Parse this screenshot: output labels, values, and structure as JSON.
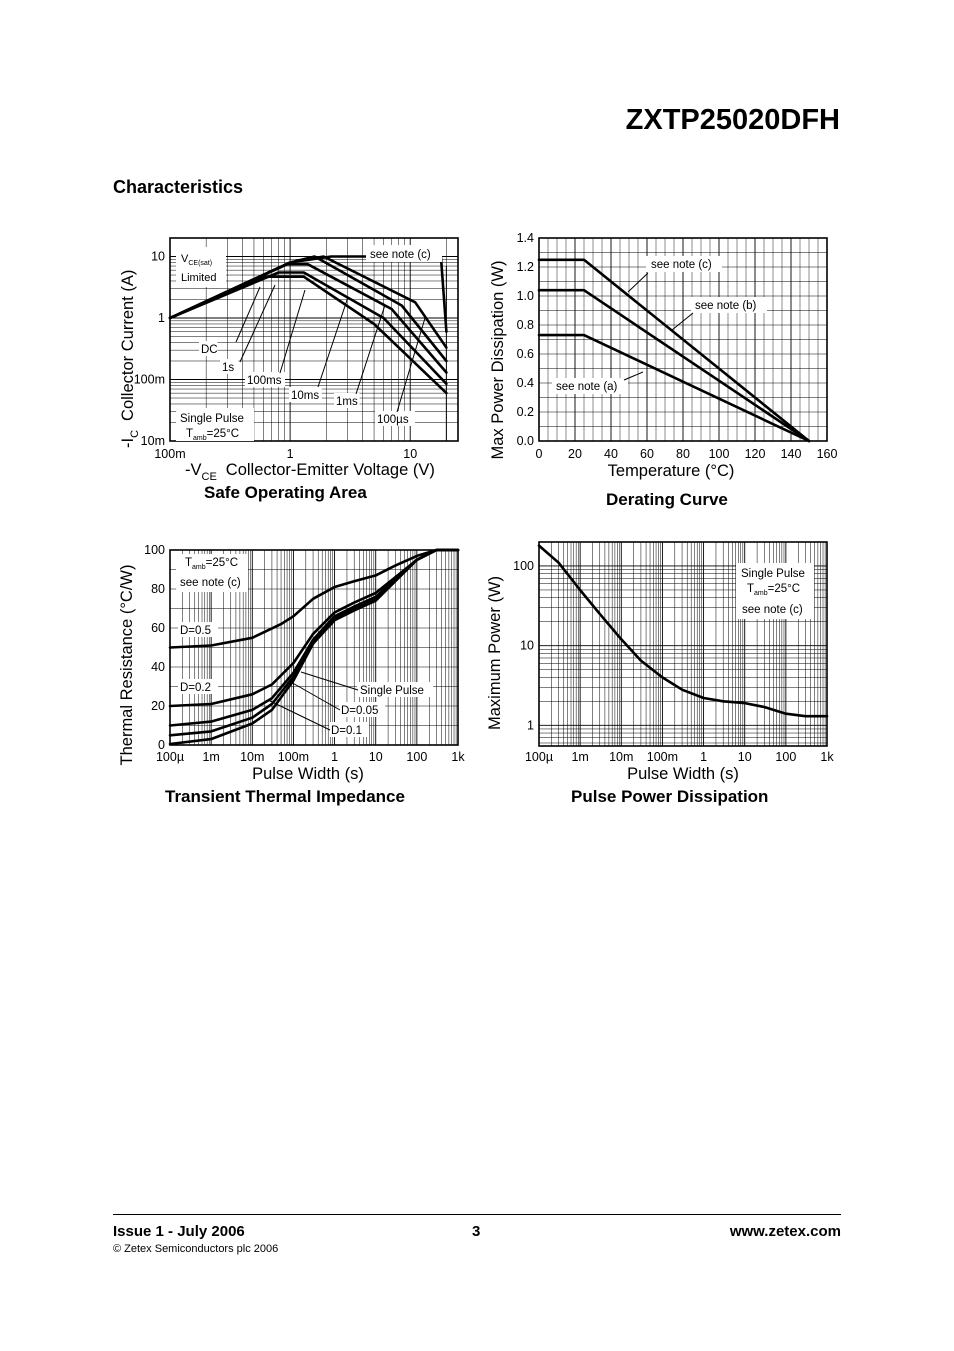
{
  "header": {
    "part_number": "ZXTP25020DFH",
    "section": "Characteristics"
  },
  "footer": {
    "issue": "Issue 1 - July 2006",
    "page": "3",
    "url": "www.zetex.com",
    "copyright": "© Zetex Semiconductors plc 2006"
  },
  "chart_data": [
    {
      "id": "soa",
      "type": "line",
      "title": "Safe Operating Area",
      "xlabel_prefix": "-V",
      "xlabel_sub": "CE",
      "xlabel": "Collector-Emitter Voltage (V)",
      "ylabel_prefix": "-I",
      "ylabel_sub": "C",
      "ylabel": "Collector Current (A)",
      "xscale": "log",
      "yscale": "log",
      "xlim": [
        0.1,
        25
      ],
      "ylim": [
        0.01,
        20
      ],
      "xticks": [
        {
          "v": 0.1,
          "l": "100m"
        },
        {
          "v": 1,
          "l": "1"
        },
        {
          "v": 10,
          "l": "10"
        }
      ],
      "yticks": [
        {
          "v": 0.01,
          "l": "10m"
        },
        {
          "v": 0.1,
          "l": "100m"
        },
        {
          "v": 1,
          "l": "1"
        },
        {
          "v": 10,
          "l": "10"
        }
      ],
      "grid": true,
      "series": [
        {
          "name": "DC",
          "x": [
            0.1,
            0.62,
            1.3,
            5,
            20
          ],
          "y": [
            1.0,
            4.7,
            4.7,
            0.8,
            0.06
          ]
        },
        {
          "name": "1s",
          "x": [
            0.1,
            0.8,
            1.3,
            6,
            20
          ],
          "y": [
            1.0,
            5.5,
            5.5,
            1.0,
            0.085
          ]
        },
        {
          "name": "100ms",
          "x": [
            0.1,
            0.95,
            1.4,
            7,
            20
          ],
          "y": [
            1.0,
            7.5,
            7.5,
            1.4,
            0.13
          ]
        },
        {
          "name": "10ms",
          "x": [
            0.1,
            1.0,
            1.6,
            8.5,
            20
          ],
          "y": [
            1.0,
            8.0,
            10,
            1.6,
            0.2
          ]
        },
        {
          "name": "1ms",
          "x": [
            0.1,
            1.0,
            1.9,
            11,
            20
          ],
          "y": [
            1.0,
            8.0,
            10,
            1.8,
            0.33
          ]
        },
        {
          "name": "100µs",
          "x": [
            0.1,
            1.0,
            2.2,
            18,
            20
          ],
          "y": [
            1.0,
            8.0,
            10,
            10,
            0.6
          ]
        }
      ],
      "annotations": [
        {
          "text": "V",
          "sub": "CE(sat)",
          "kind": "vce"
        },
        {
          "text": "Limited"
        },
        {
          "text": "see note (c)"
        },
        {
          "text": "DC"
        },
        {
          "text": "1s"
        },
        {
          "text": "100ms"
        },
        {
          "text": "10ms"
        },
        {
          "text": "1ms"
        },
        {
          "text": "100µs"
        },
        {
          "text": "Single Pulse"
        },
        {
          "text": "T",
          "sub": "amb",
          "suffix": "=25°C",
          "kind": "tamb"
        }
      ]
    },
    {
      "id": "derating",
      "type": "line",
      "title": "Derating Curve",
      "xlabel": "Temperature (°C)",
      "ylabel": "Max Power Dissipation (W)",
      "xscale": "linear",
      "yscale": "linear",
      "xlim": [
        0,
        160
      ],
      "ylim": [
        0,
        1.4
      ],
      "xticks": [
        {
          "v": 0,
          "l": "0"
        },
        {
          "v": 20,
          "l": "20"
        },
        {
          "v": 40,
          "l": "40"
        },
        {
          "v": 60,
          "l": "60"
        },
        {
          "v": 80,
          "l": "80"
        },
        {
          "v": 100,
          "l": "100"
        },
        {
          "v": 120,
          "l": "120"
        },
        {
          "v": 140,
          "l": "140"
        },
        {
          "v": 160,
          "l": "160"
        }
      ],
      "yticks": [
        {
          "v": 0,
          "l": "0.0"
        },
        {
          "v": 0.2,
          "l": "0.2"
        },
        {
          "v": 0.4,
          "l": "0.4"
        },
        {
          "v": 0.6,
          "l": "0.6"
        },
        {
          "v": 0.8,
          "l": "0.8"
        },
        {
          "v": 1.0,
          "l": "1.0"
        },
        {
          "v": 1.2,
          "l": "1.2"
        },
        {
          "v": 1.4,
          "l": "1.4"
        }
      ],
      "grid": true,
      "series": [
        {
          "name": "see note (c)",
          "x": [
            0,
            25,
            150
          ],
          "y": [
            1.25,
            1.25,
            0
          ]
        },
        {
          "name": "see note (b)",
          "x": [
            0,
            25,
            150
          ],
          "y": [
            1.04,
            1.04,
            0
          ]
        },
        {
          "name": "see note (a)",
          "x": [
            0,
            25,
            150
          ],
          "y": [
            0.73,
            0.73,
            0
          ]
        }
      ],
      "annotations": [
        {
          "text": "see note (c)"
        },
        {
          "text": "see note (b)"
        },
        {
          "text": "see note (a)"
        }
      ]
    },
    {
      "id": "thermal",
      "type": "line",
      "title": "Transient Thermal Impedance",
      "xlabel": "Pulse Width (s)",
      "ylabel": "Thermal Resistance (°C/W)",
      "xscale": "log",
      "yscale": "linear",
      "xlim": [
        0.0001,
        1000
      ],
      "ylim": [
        0,
        100
      ],
      "xticks": [
        {
          "v": 0.0001,
          "l": "100µ"
        },
        {
          "v": 0.001,
          "l": "1m"
        },
        {
          "v": 0.01,
          "l": "10m"
        },
        {
          "v": 0.1,
          "l": "100m"
        },
        {
          "v": 1,
          "l": "1"
        },
        {
          "v": 10,
          "l": "10"
        },
        {
          "v": 100,
          "l": "100"
        },
        {
          "v": 1000,
          "l": "1k"
        }
      ],
      "yticks": [
        {
          "v": 0,
          "l": "0"
        },
        {
          "v": 20,
          "l": "20"
        },
        {
          "v": 40,
          "l": "40"
        },
        {
          "v": 60,
          "l": "60"
        },
        {
          "v": 80,
          "l": "80"
        },
        {
          "v": 100,
          "l": "100"
        }
      ],
      "grid": true,
      "series": [
        {
          "name": "D=0.5",
          "x": [
            0.0001,
            0.001,
            0.01,
            0.05,
            0.1,
            0.3,
            1,
            3,
            10,
            30,
            100,
            300,
            1000
          ],
          "y": [
            50,
            51,
            55,
            62,
            66,
            75,
            81,
            84,
            87,
            92,
            97,
            100,
            100
          ]
        },
        {
          "name": "D=0.2",
          "x": [
            0.0001,
            0.001,
            0.01,
            0.03,
            0.1,
            0.3,
            1,
            3,
            10,
            30,
            100,
            300,
            1000
          ],
          "y": [
            20,
            21,
            26,
            31,
            42,
            57,
            68,
            73,
            78,
            86,
            95,
            100,
            100
          ]
        },
        {
          "name": "D=0.1",
          "x": [
            0.0001,
            0.001,
            0.01,
            0.03,
            0.1,
            0.3,
            1,
            3,
            10,
            30,
            100,
            300,
            1000
          ],
          "y": [
            10,
            12,
            18,
            24,
            37,
            54,
            66,
            71,
            76,
            85,
            95,
            100,
            100
          ]
        },
        {
          "name": "D=0.05",
          "x": [
            0.0001,
            0.001,
            0.01,
            0.03,
            0.1,
            0.3,
            1,
            3,
            10,
            30,
            100,
            300,
            1000
          ],
          "y": [
            5,
            7,
            14,
            21,
            35,
            53,
            65,
            70,
            75,
            85,
            95,
            100,
            100
          ]
        },
        {
          "name": "Single Pulse",
          "x": [
            0.0001,
            0.001,
            0.01,
            0.03,
            0.1,
            0.3,
            1,
            3,
            10,
            30,
            100,
            300,
            1000
          ],
          "y": [
            0.5,
            3,
            11,
            18,
            33,
            52,
            64,
            69,
            74,
            84,
            95,
            100,
            100
          ]
        }
      ],
      "annotations": [
        {
          "text": "T",
          "sub": "amb",
          "suffix": "=25°C",
          "kind": "tamb"
        },
        {
          "text": "see note (c)"
        },
        {
          "text": "D=0.5"
        },
        {
          "text": "D=0.2"
        },
        {
          "text": "Single Pulse"
        },
        {
          "text": "D=0.05"
        },
        {
          "text": "D=0.1"
        }
      ]
    },
    {
      "id": "pulse",
      "type": "line",
      "title": "Pulse Power Dissipation",
      "xlabel": "Pulse Width (s)",
      "ylabel": "Maximum Power (W)",
      "xscale": "log",
      "yscale": "log",
      "xlim": [
        0.0001,
        1000
      ],
      "ylim": [
        0.55,
        200
      ],
      "xticks": [
        {
          "v": 0.0001,
          "l": "100µ"
        },
        {
          "v": 0.001,
          "l": "1m"
        },
        {
          "v": 0.01,
          "l": "10m"
        },
        {
          "v": 0.1,
          "l": "100m"
        },
        {
          "v": 1,
          "l": "1"
        },
        {
          "v": 10,
          "l": "10"
        },
        {
          "v": 100,
          "l": "100"
        },
        {
          "v": 1000,
          "l": "1k"
        }
      ],
      "yticks": [
        {
          "v": 1,
          "l": "1"
        },
        {
          "v": 10,
          "l": "10"
        },
        {
          "v": 100,
          "l": "100"
        }
      ],
      "grid": true,
      "series": [
        {
          "name": "",
          "x": [
            0.0001,
            0.0003,
            0.001,
            0.003,
            0.01,
            0.03,
            0.1,
            0.3,
            1,
            3,
            10,
            30,
            100,
            300,
            1000
          ],
          "y": [
            180,
            110,
            50,
            25,
            12,
            6.5,
            4,
            2.8,
            2.2,
            2.0,
            1.9,
            1.7,
            1.4,
            1.3,
            1.3
          ]
        }
      ],
      "annotations": [
        {
          "text": "Single Pulse"
        },
        {
          "text": "T",
          "sub": "amb",
          "suffix": "=25°C",
          "kind": "tamb"
        },
        {
          "text": "see note (c)"
        }
      ]
    }
  ]
}
